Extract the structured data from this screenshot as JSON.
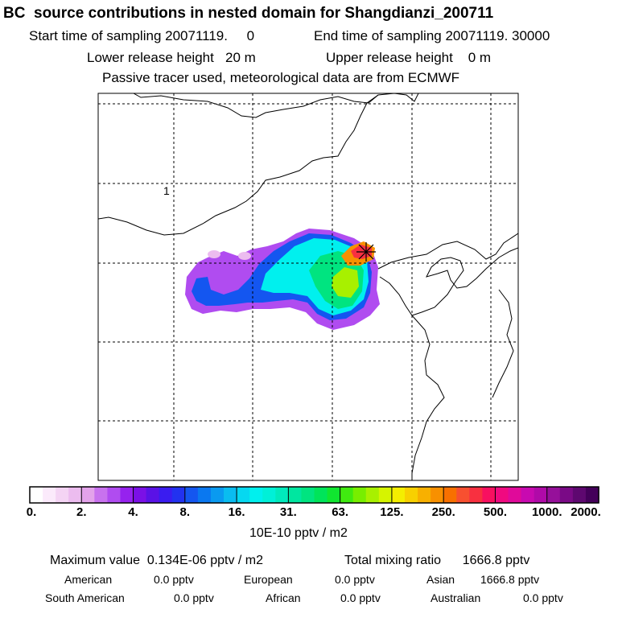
{
  "header": {
    "title": "BC  source contributions in nested domain for Shangdianzi_200711",
    "start": "Start time of sampling 20071119.     0",
    "end": "End time of sampling 20071119. 30000",
    "lower": "Lower release height   20 m",
    "upper": "Upper release height    0 m",
    "tracer": "Passive tracer used, meteorological data are from ECMWF"
  },
  "map": {
    "grid_label": "1",
    "receptor_marker": "star-marker",
    "frame_color": "#000000",
    "grid_color": "#000000"
  },
  "colorbar": {
    "tick_labels": [
      "0.",
      "2.",
      "4.",
      "8.",
      "16.",
      "31.",
      "63.",
      "125.",
      "250.",
      "500.",
      "1000.",
      "2000."
    ],
    "units": "10E-10 pptv / m2",
    "colors": [
      "#ffffff",
      "#fbeafb",
      "#f4d4f4",
      "#ecbcef",
      "#e3a3ea",
      "#c872ee",
      "#b04cf0",
      "#9622ee",
      "#7b10e6",
      "#5a12e6",
      "#3a1cf0",
      "#2232f0",
      "#1456f0",
      "#0a78f0",
      "#0a9af0",
      "#0abcf0",
      "#06d8f0",
      "#00f0ee",
      "#00f0d8",
      "#00eabc",
      "#00e6a0",
      "#00e480",
      "#00e45a",
      "#10e630",
      "#40ea10",
      "#78ee00",
      "#a8f000",
      "#d6f400",
      "#f4ee00",
      "#f8d000",
      "#f8b000",
      "#f89000",
      "#f87000",
      "#f85030",
      "#f83040",
      "#f81060",
      "#f00a80",
      "#e00a9a",
      "#c80ab0",
      "#b00aa8",
      "#96109a",
      "#7a0a86",
      "#5e0870",
      "#44005a"
    ]
  },
  "footer": {
    "max_value": "Maximum value  0.134E-06 pptv / m2",
    "total": "Total mixing ratio      1666.8 pptv",
    "regions": [
      {
        "name": "American",
        "value": "0.0 pptv"
      },
      {
        "name": "European",
        "value": "0.0 pptv"
      },
      {
        "name": "Asian",
        "value": "1666.8 pptv"
      },
      {
        "name": "South American",
        "value": "0.0 pptv"
      },
      {
        "name": "African",
        "value": "0.0 pptv"
      },
      {
        "name": "Australian",
        "value": "0.0 pptv"
      }
    ]
  }
}
